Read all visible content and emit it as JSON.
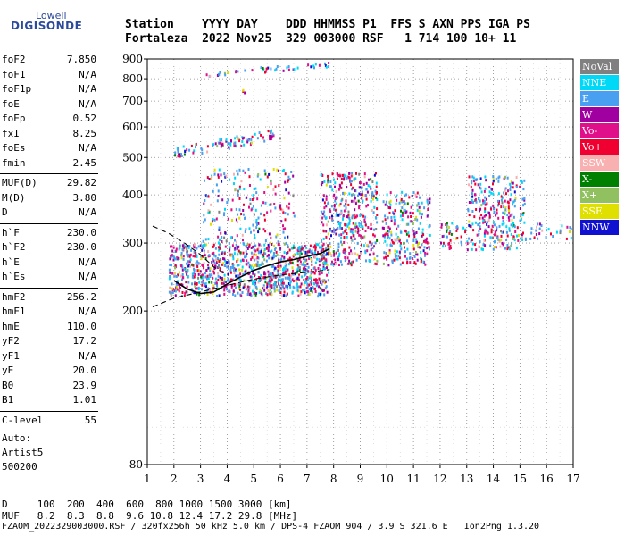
{
  "logo": {
    "line1": "Lowell",
    "line2": "DIGISONDE"
  },
  "header": {
    "row1": "Station    YYYY DAY    DDD HHMMSS P1  FFS S AXN PPS IGA PS",
    "row2": "Fortaleza  2022 Nov25  329 003000 RSF   1 714 100 10+ 11"
  },
  "params_group1": [
    {
      "k": "foF2",
      "v": "7.850"
    },
    {
      "k": "foF1",
      "v": "N/A"
    },
    {
      "k": "foF1p",
      "v": "N/A"
    },
    {
      "k": "foE",
      "v": "N/A"
    },
    {
      "k": "foEp",
      "v": "0.52"
    },
    {
      "k": "fxI",
      "v": "8.25"
    },
    {
      "k": "foEs",
      "v": "N/A"
    },
    {
      "k": "fmin",
      "v": "2.45"
    }
  ],
  "params_group2": [
    {
      "k": "MUF(D)",
      "v": "29.82"
    },
    {
      "k": "M(D)",
      "v": "3.80"
    },
    {
      "k": "D",
      "v": "N/A"
    }
  ],
  "params_group3": [
    {
      "k": "h`F",
      "v": "230.0"
    },
    {
      "k": "h`F2",
      "v": "230.0"
    },
    {
      "k": "h`E",
      "v": "N/A"
    },
    {
      "k": "h`Es",
      "v": "N/A"
    }
  ],
  "params_group4": [
    {
      "k": "hmF2",
      "v": "256.2"
    },
    {
      "k": "hmF1",
      "v": "N/A"
    },
    {
      "k": "hmE",
      "v": "110.0"
    },
    {
      "k": "yF2",
      "v": "17.2"
    },
    {
      "k": "yF1",
      "v": "N/A"
    },
    {
      "k": "yE",
      "v": "20.0"
    },
    {
      "k": "B0",
      "v": "23.9"
    },
    {
      "k": "B1",
      "v": "1.01"
    }
  ],
  "params_group5": [
    {
      "k": "C-level",
      "v": "55"
    }
  ],
  "scaler": {
    "line1": "Auto:",
    "line2": "Artist5",
    "line3": "500200"
  },
  "legend": [
    {
      "label": "NoVal",
      "color": "#808080"
    },
    {
      "label": "NNE",
      "color": "#00d8f8"
    },
    {
      "label": "E",
      "color": "#4aa0f0"
    },
    {
      "label": "W",
      "color": "#a000a0"
    },
    {
      "label": "Vo-",
      "color": "#e0108a"
    },
    {
      "label": "Vo+",
      "color": "#f00030"
    },
    {
      "label": "SSW",
      "color": "#f8b0b0"
    },
    {
      "label": "X-",
      "color": "#008000"
    },
    {
      "label": "X+",
      "color": "#90c060"
    },
    {
      "label": "SSE",
      "color": "#e0e000"
    },
    {
      "label": "NNW",
      "color": "#1010d0"
    }
  ],
  "muf_table": {
    "d_row": "D     100  200  400  600  800 1000 1500 3000 [km]",
    "muf_row": "MUF   8.2  8.3  8.8  9.6 10.8 12.4 17.2 29.8 [MHz]"
  },
  "footer": "FZAOM_2022329003000.RSF / 320fx256h 50 kHz 5.0 km / DPS-4 FZAOM 904 / 3.9 S 321.6 E   Ion2Png 1.3.20",
  "chart_data": {
    "type": "scatter",
    "x_ticks": [
      1,
      2,
      3,
      4,
      5,
      6,
      7,
      8,
      9,
      10,
      11,
      12,
      13,
      14,
      15,
      16,
      17
    ],
    "y_ticks": [
      80,
      200,
      300,
      400,
      500,
      600,
      700,
      800,
      900
    ],
    "xlim": [
      1,
      17
    ],
    "y_scale": "log",
    "ylim": [
      80,
      900
    ],
    "grid": true,
    "traces": [
      {
        "name": "",
        "points": [
          [
            2.0,
            240
          ],
          [
            2.5,
            228
          ],
          [
            3.0,
            222
          ],
          [
            3.5,
            224
          ],
          [
            4.0,
            235
          ],
          [
            4.5,
            245
          ],
          [
            5.0,
            255
          ],
          [
            5.5,
            262
          ],
          [
            6.0,
            268
          ],
          [
            6.5,
            272
          ],
          [
            7.0,
            277
          ],
          [
            7.5,
            282
          ],
          [
            7.85,
            290
          ]
        ],
        "style": "solid"
      },
      {
        "name": "",
        "points": [
          [
            1.2,
            332
          ],
          [
            1.8,
            318
          ],
          [
            2.4,
            300
          ],
          [
            3.0,
            280
          ],
          [
            3.5,
            260
          ],
          [
            4.0,
            248
          ]
        ],
        "style": "dashed"
      },
      {
        "name": "",
        "points": [
          [
            1.2,
            205
          ],
          [
            2.0,
            216
          ],
          [
            3.0,
            224
          ],
          [
            4.0,
            233
          ],
          [
            5.0,
            242
          ],
          [
            6.0,
            248
          ],
          [
            7.0,
            252
          ],
          [
            7.85,
            256
          ]
        ],
        "style": "dashed"
      }
    ],
    "echo_clusters": [
      {
        "xmin": 1.8,
        "xmax": 7.8,
        "ymin": 220,
        "ymax": 300,
        "density": 1.0
      },
      {
        "xmin": 3.0,
        "xmax": 6.5,
        "ymin": 300,
        "ymax": 470,
        "density": 0.25
      },
      {
        "xmin": 7.5,
        "xmax": 9.6,
        "ymin": 265,
        "ymax": 460,
        "density": 0.65
      },
      {
        "xmin": 9.8,
        "xmax": 11.6,
        "ymin": 265,
        "ymax": 410,
        "density": 0.55
      },
      {
        "xmin": 12.0,
        "xmax": 13.0,
        "ymin": 290,
        "ymax": 345,
        "density": 0.45
      },
      {
        "xmin": 13.0,
        "xmax": 15.2,
        "ymin": 290,
        "ymax": 450,
        "density": 0.55
      },
      {
        "xmin": 15.3,
        "xmax": 16.9,
        "ymin": 310,
        "ymax": 340,
        "density": 0.35
      },
      {
        "xmin": 2.0,
        "xmax": 6.0,
        "ymin": 500,
        "ymax": 600,
        "density": 0.25,
        "trend": "rising"
      },
      {
        "xmin": 3.2,
        "xmax": 7.8,
        "ymin": 815,
        "ymax": 890,
        "density": 0.2,
        "trend": "rising"
      },
      {
        "xmin": 3.5,
        "xmax": 5.0,
        "ymin": 740,
        "ymax": 760,
        "density": 0.15
      }
    ]
  }
}
